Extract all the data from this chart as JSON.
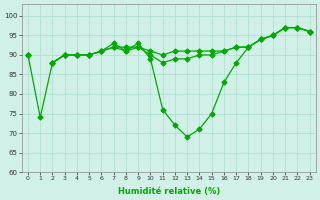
{
  "x": [
    0,
    1,
    2,
    3,
    4,
    5,
    6,
    7,
    8,
    9,
    10,
    11,
    12,
    13,
    14,
    15,
    16,
    17,
    18,
    19,
    20,
    21,
    22,
    23
  ],
  "series1": [
    90,
    74,
    88,
    90,
    90,
    90,
    91,
    93,
    91,
    93,
    89,
    76,
    72,
    69,
    71,
    75,
    83,
    88,
    92,
    94,
    95,
    97,
    97,
    96
  ],
  "series2": [
    90,
    null,
    88,
    90,
    null,
    90,
    91,
    92,
    91,
    92,
    89,
    null,
    null,
    null,
    null,
    null,
    null,
    null,
    92,
    94,
    95,
    97,
    null,
    null
  ],
  "series3": [
    90,
    null,
    88,
    90,
    null,
    90,
    91,
    92,
    91,
    92,
    89,
    null,
    null,
    null,
    null,
    null,
    null,
    null,
    92,
    94,
    95,
    null,
    null,
    null
  ],
  "line_color": "#00aa00",
  "bg_color": "#d0f0e8",
  "grid_color": "#aaddcc",
  "xlabel": "Humidité relative (%)",
  "ylabel": "",
  "ylim": [
    60,
    103
  ],
  "xlim": [
    -0.5,
    23.5
  ],
  "yticks": [
    60,
    65,
    70,
    75,
    80,
    85,
    90,
    95,
    100
  ],
  "xticks": [
    0,
    1,
    2,
    3,
    4,
    5,
    6,
    7,
    8,
    9,
    10,
    11,
    12,
    13,
    14,
    15,
    16,
    17,
    18,
    19,
    20,
    21,
    22,
    23
  ]
}
